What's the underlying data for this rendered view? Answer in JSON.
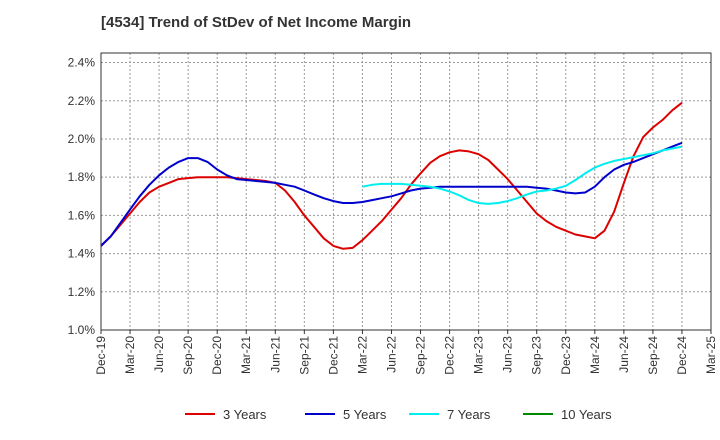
{
  "chart_data": {
    "type": "line",
    "title": "[4534]  Trend of StDev of Net Income Margin",
    "xlabel": "",
    "ylabel": "",
    "x_tick_labels": [
      "Dec-19",
      "Mar-20",
      "Jun-20",
      "Sep-20",
      "Dec-20",
      "Mar-21",
      "Jun-21",
      "Sep-21",
      "Dec-21",
      "Mar-22",
      "Jun-22",
      "Sep-22",
      "Dec-22",
      "Mar-23",
      "Jun-23",
      "Sep-23",
      "Dec-23",
      "Mar-24",
      "Jun-24",
      "Sep-24",
      "Dec-24",
      "Mar-25"
    ],
    "y_tick_labels": [
      "1.0%",
      "1.2%",
      "1.4%",
      "1.6%",
      "1.8%",
      "2.0%",
      "2.2%",
      "2.4%"
    ],
    "ylim": [
      1.0,
      2.45
    ],
    "grid": true,
    "legend_position": "bottom",
    "series": [
      {
        "name": "3 Years",
        "color": "#dd0000",
        "x": [
          0,
          1,
          2,
          3,
          4,
          5,
          6,
          7,
          8,
          9,
          10,
          11,
          12,
          13,
          14,
          15,
          16,
          17,
          18,
          19,
          20,
          21,
          22,
          23,
          24,
          25,
          26,
          27,
          28,
          29,
          30,
          31,
          32,
          33,
          34,
          35,
          36,
          37,
          38,
          39,
          40,
          41,
          42,
          43,
          44,
          45,
          46,
          47,
          48,
          49,
          50,
          51,
          52,
          53,
          54,
          55,
          56,
          57,
          58,
          59,
          60
        ],
        "values": [
          1.44,
          1.49,
          1.55,
          1.61,
          1.67,
          1.72,
          1.75,
          1.77,
          1.79,
          1.795,
          1.8,
          1.8,
          1.8,
          1.8,
          1.795,
          1.79,
          1.785,
          1.78,
          1.77,
          1.73,
          1.67,
          1.6,
          1.54,
          1.48,
          1.44,
          1.425,
          1.43,
          1.47,
          1.52,
          1.57,
          1.63,
          1.69,
          1.76,
          1.82,
          1.875,
          1.91,
          1.93,
          1.94,
          1.935,
          1.92,
          1.89,
          1.84,
          1.79,
          1.73,
          1.67,
          1.61,
          1.57,
          1.54,
          1.52,
          1.5,
          1.49,
          1.48,
          1.52,
          1.62,
          1.77,
          1.91,
          2.01,
          2.06,
          2.1,
          2.15,
          2.19
        ]
      },
      {
        "name": "5 Years",
        "color": "#0000cc",
        "x": [
          0,
          1,
          2,
          3,
          4,
          5,
          6,
          7,
          8,
          9,
          10,
          11,
          12,
          13,
          14,
          15,
          16,
          17,
          18,
          19,
          20,
          21,
          22,
          23,
          24,
          25,
          26,
          27,
          28,
          29,
          30,
          31,
          32,
          33,
          34,
          35,
          36,
          37,
          38,
          39,
          40,
          41,
          42,
          43,
          44,
          45,
          46,
          47,
          48,
          49,
          50,
          51,
          52,
          53,
          54,
          55,
          56,
          57,
          58,
          59,
          60
        ],
        "values": [
          1.44,
          1.49,
          1.56,
          1.63,
          1.7,
          1.76,
          1.81,
          1.85,
          1.88,
          1.9,
          1.9,
          1.88,
          1.84,
          1.81,
          1.79,
          1.785,
          1.78,
          1.775,
          1.77,
          1.76,
          1.75,
          1.73,
          1.71,
          1.69,
          1.675,
          1.665,
          1.665,
          1.67,
          1.68,
          1.69,
          1.7,
          1.715,
          1.73,
          1.74,
          1.745,
          1.75,
          1.75,
          1.75,
          1.75,
          1.75,
          1.75,
          1.75,
          1.75,
          1.75,
          1.75,
          1.745,
          1.74,
          1.73,
          1.72,
          1.715,
          1.72,
          1.75,
          1.8,
          1.84,
          1.865,
          1.88,
          1.9,
          1.92,
          1.94,
          1.96,
          1.98
        ]
      },
      {
        "name": "7 Years",
        "color": "#00eeee",
        "x": [
          27,
          28,
          29,
          30,
          31,
          32,
          33,
          34,
          35,
          36,
          37,
          38,
          39,
          40,
          41,
          42,
          43,
          44,
          45,
          46,
          47,
          48,
          49,
          50,
          51,
          52,
          53,
          54,
          55,
          56,
          57,
          58,
          59,
          60
        ],
        "values": [
          1.75,
          1.76,
          1.765,
          1.765,
          1.765,
          1.76,
          1.755,
          1.75,
          1.74,
          1.725,
          1.705,
          1.68,
          1.665,
          1.66,
          1.665,
          1.675,
          1.69,
          1.71,
          1.725,
          1.73,
          1.74,
          1.755,
          1.785,
          1.82,
          1.85,
          1.87,
          1.885,
          1.895,
          1.905,
          1.915,
          1.925,
          1.94,
          1.95,
          1.96
        ]
      },
      {
        "name": "10 Years",
        "color": "#008800",
        "x": [],
        "values": []
      }
    ]
  }
}
